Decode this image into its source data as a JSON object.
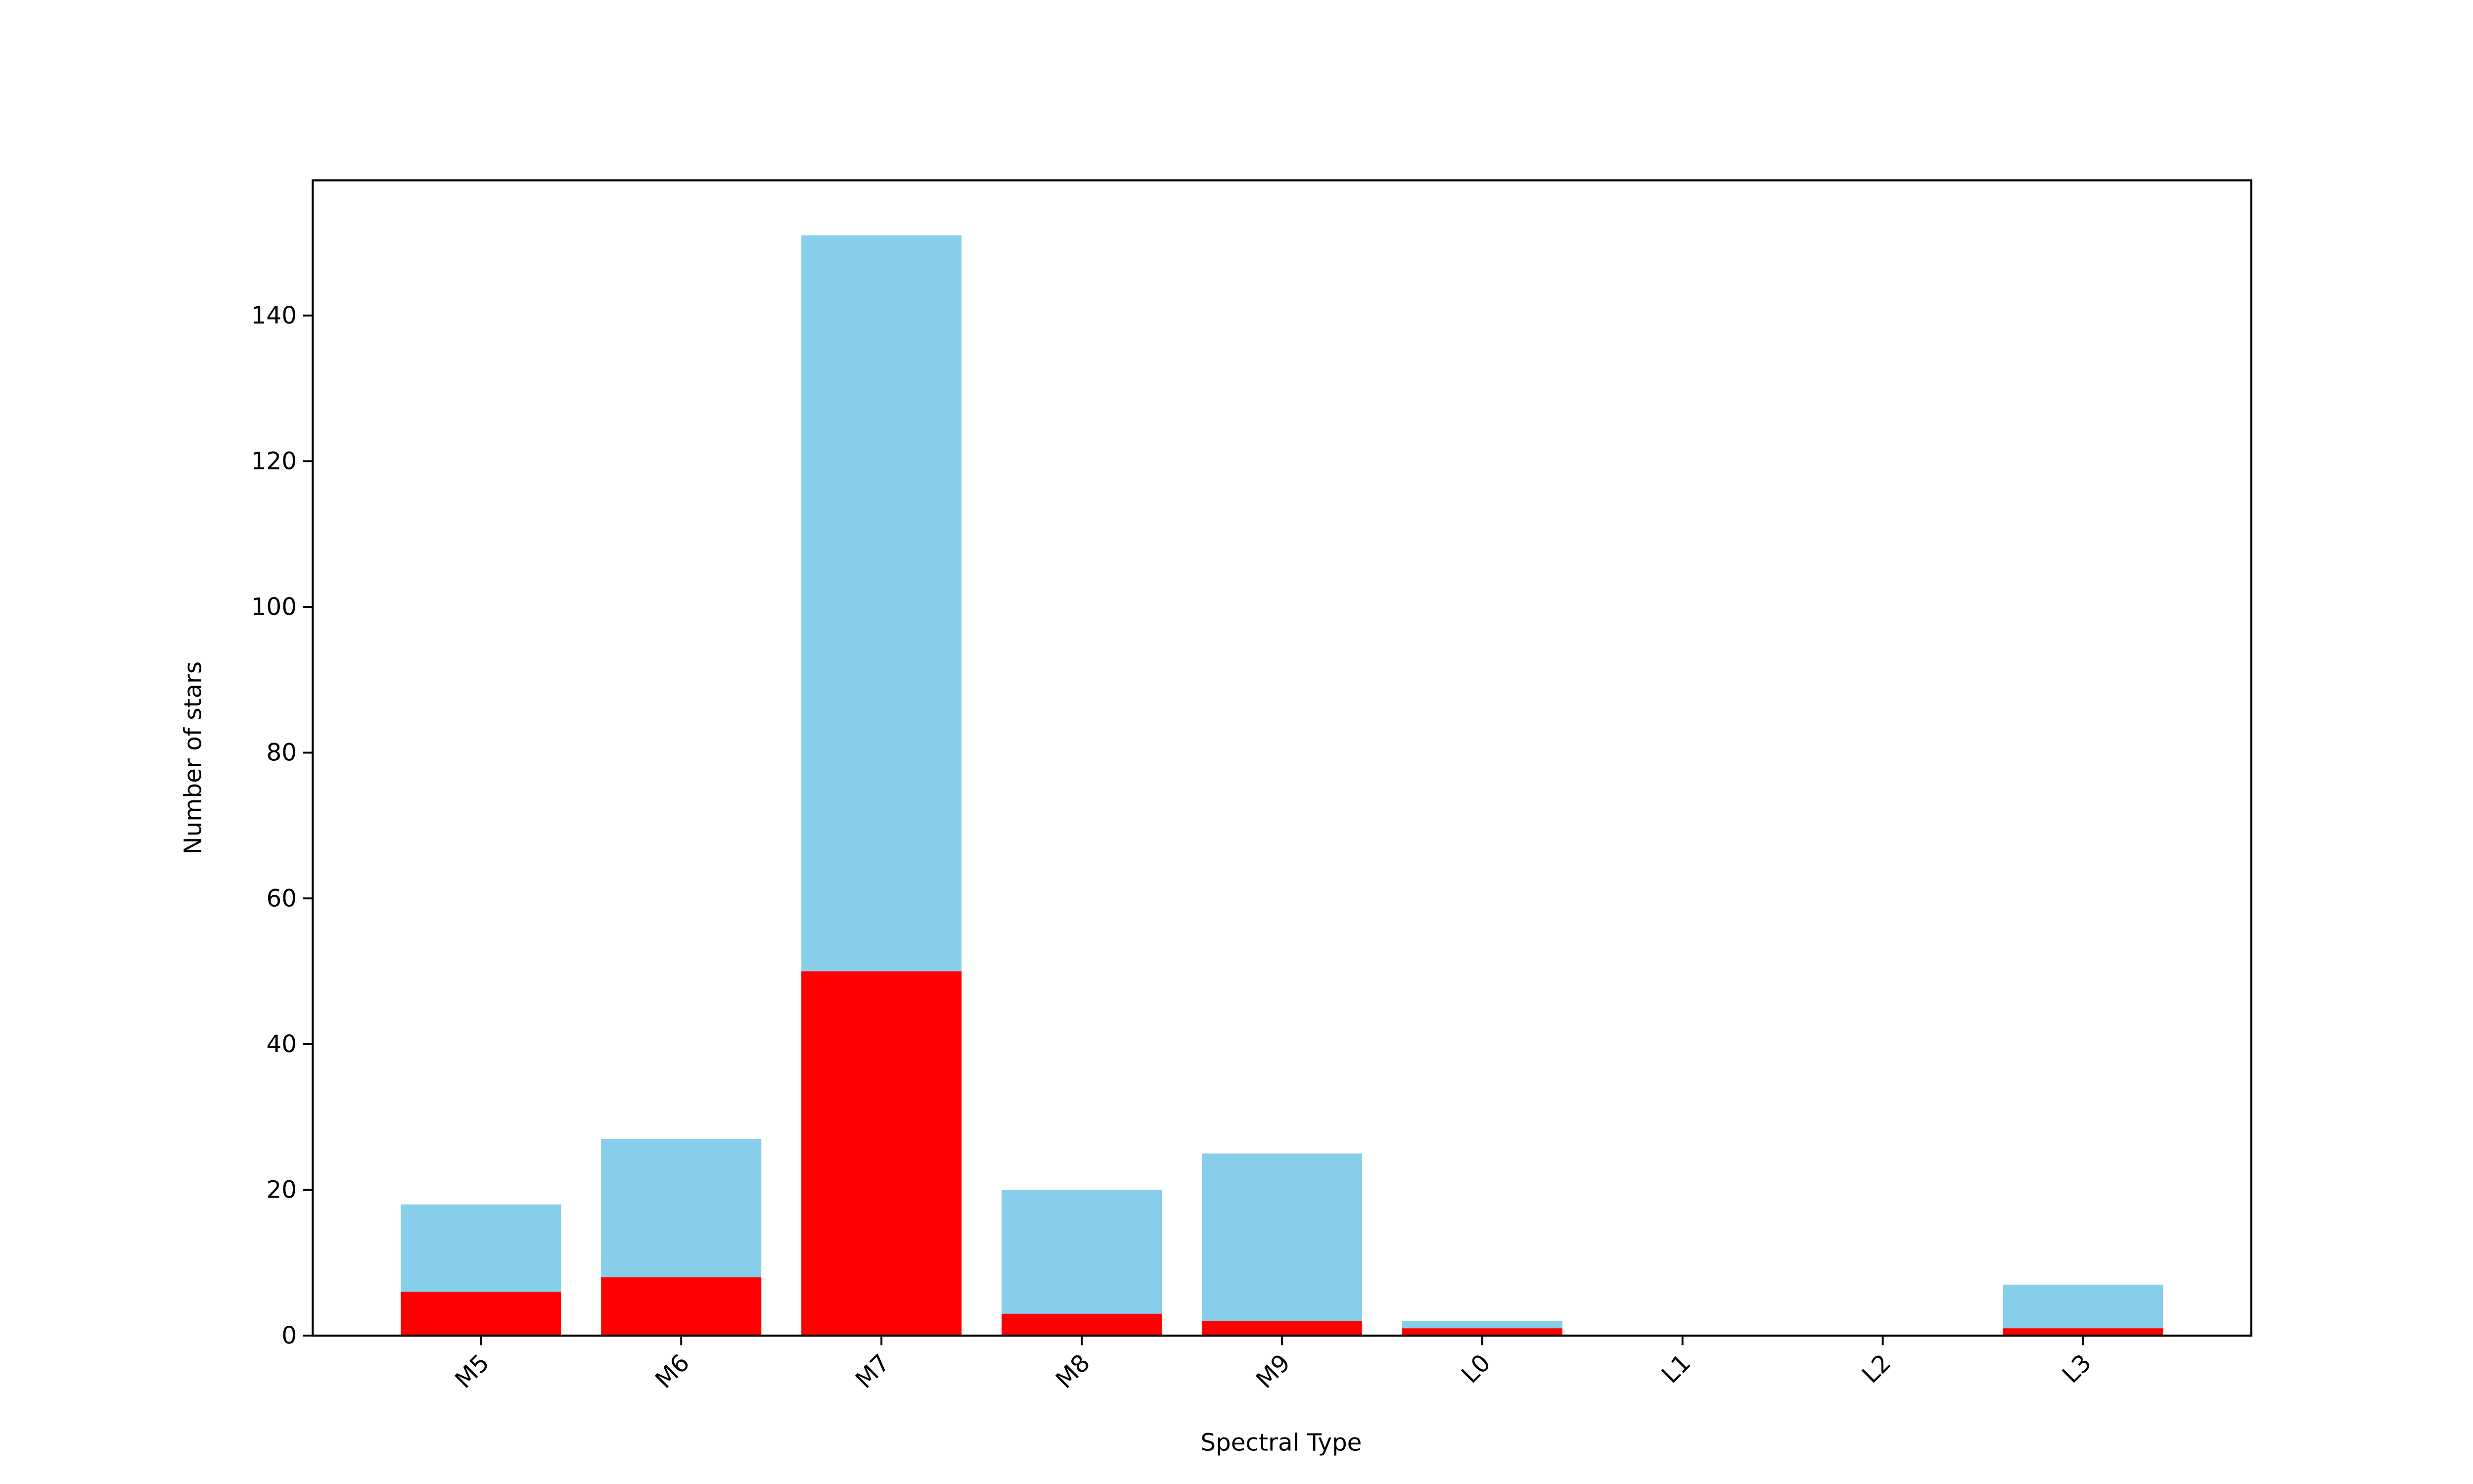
{
  "chart_data": {
    "type": "bar",
    "x_label": "Spectral Type",
    "y_label": "Number of stars",
    "categories": [
      "M5",
      "M6",
      "M7",
      "M8",
      "M9",
      "L0",
      "L1",
      "L2",
      "L3"
    ],
    "series": [
      {
        "color": "#87ceeb",
        "values": [
          18,
          27,
          151,
          20,
          25,
          2,
          0,
          0,
          7
        ]
      },
      {
        "color": "#ff0000",
        "values": [
          6,
          8,
          50,
          3,
          2,
          1,
          0,
          0,
          1
        ]
      }
    ],
    "ylim": [
      0,
      158.55
    ],
    "yticks": [
      0,
      20,
      40,
      60,
      80,
      100,
      120,
      140
    ],
    "grid": false
  }
}
